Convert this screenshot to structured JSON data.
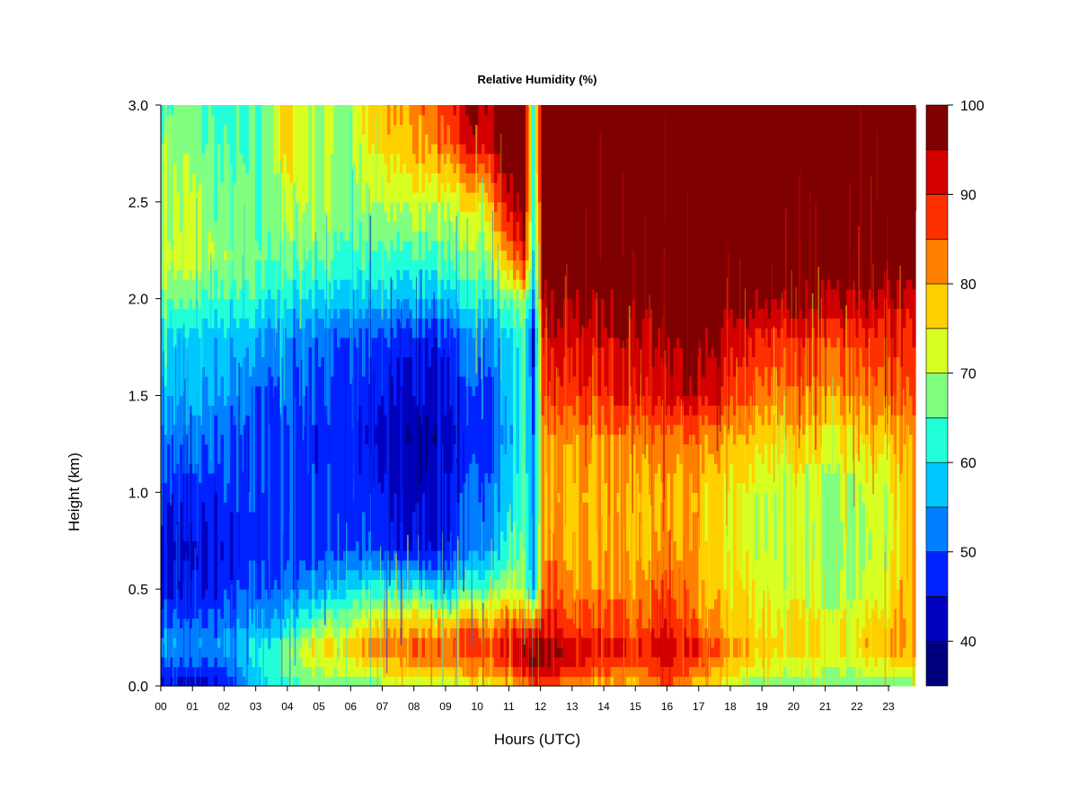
{
  "chart_data": {
    "type": "heatmap",
    "title": "Relative Humidity (%)",
    "xlabel": "Hours (UTC)",
    "ylabel": "Height (km)",
    "x_ticks": [
      "00",
      "01",
      "02",
      "03",
      "04",
      "05",
      "06",
      "07",
      "08",
      "09",
      "10",
      "11",
      "12",
      "13",
      "14",
      "15",
      "16",
      "17",
      "18",
      "19",
      "20",
      "21",
      "22",
      "23"
    ],
    "y_ticks": [
      "0.0",
      "0.5",
      "1.0",
      "1.5",
      "2.0",
      "2.5",
      "3.0"
    ],
    "xlim": [
      0,
      23.85
    ],
    "ylim": [
      0,
      3.0
    ],
    "colorbar": {
      "levels": [
        35,
        40,
        45,
        50,
        55,
        60,
        65,
        70,
        75,
        80,
        85,
        90,
        95,
        100
      ],
      "tick_labels": [
        "40",
        "50",
        "60",
        "70",
        "80",
        "90",
        "100"
      ],
      "tick_values": [
        40,
        50,
        60,
        70,
        80,
        90,
        100
      ],
      "colors": [
        "#00007f",
        "#0000bf",
        "#0022ff",
        "#0080ff",
        "#00c8ff",
        "#22ffd8",
        "#80ff80",
        "#d8ff22",
        "#ffd000",
        "#ff8000",
        "#ff3000",
        "#d40000",
        "#7f0000"
      ]
    },
    "hours": [
      0,
      1,
      2,
      3,
      4,
      5,
      6,
      7,
      8,
      9,
      10,
      11,
      11.5,
      11.8,
      12.1,
      13,
      14,
      15,
      16,
      17,
      18,
      19,
      20,
      21,
      22,
      23,
      23.85
    ],
    "heights": [
      0.0,
      0.1,
      0.2,
      0.3,
      0.5,
      0.7,
      1.0,
      1.3,
      1.5,
      1.8,
      2.0,
      2.2,
      2.5,
      2.8,
      3.0
    ],
    "rh": [
      [
        45,
        42,
        44,
        58,
        63,
        65,
        65,
        68,
        70,
        70,
        72,
        75,
        80,
        88,
        85,
        80,
        78,
        76,
        85,
        75,
        70,
        65,
        65,
        65,
        65,
        66,
        68
      ],
      [
        50,
        48,
        50,
        60,
        67,
        72,
        73,
        77,
        80,
        80,
        83,
        86,
        93,
        96,
        95,
        90,
        87,
        85,
        90,
        85,
        78,
        74,
        72,
        72,
        72,
        74,
        76
      ],
      [
        55,
        54,
        55,
        60,
        68,
        76,
        78,
        82,
        85,
        85,
        88,
        91,
        96,
        98,
        98,
        93,
        91,
        88,
        93,
        89,
        82,
        78,
        77,
        77,
        77,
        80,
        82
      ],
      [
        52,
        50,
        52,
        55,
        60,
        68,
        72,
        77,
        80,
        80,
        83,
        86,
        88,
        88,
        90,
        88,
        86,
        84,
        90,
        83,
        78,
        76,
        75,
        75,
        75,
        78,
        82
      ],
      [
        45,
        45,
        47,
        50,
        52,
        56,
        60,
        63,
        62,
        58,
        64,
        70,
        70,
        55,
        85,
        83,
        82,
        81,
        86,
        80,
        76,
        73,
        72,
        70,
        70,
        74,
        82
      ],
      [
        43,
        43,
        45,
        47,
        48,
        48,
        50,
        48,
        45,
        47,
        53,
        62,
        68,
        52,
        82,
        80,
        79,
        78,
        82,
        78,
        75,
        72,
        70,
        68,
        69,
        72,
        80
      ],
      [
        47,
        47,
        48,
        48,
        48,
        48,
        48,
        45,
        42,
        45,
        50,
        58,
        66,
        55,
        80,
        79,
        78,
        77,
        79,
        77,
        75,
        72,
        70,
        70,
        70,
        72,
        80
      ],
      [
        52,
        52,
        50,
        48,
        48,
        47,
        47,
        43,
        40,
        43,
        47,
        55,
        63,
        52,
        82,
        82,
        82,
        82,
        84,
        83,
        80,
        78,
        77,
        76,
        76,
        78,
        82
      ],
      [
        57,
        56,
        54,
        50,
        50,
        50,
        48,
        45,
        43,
        45,
        48,
        56,
        63,
        52,
        88,
        88,
        88,
        90,
        92,
        93,
        88,
        84,
        82,
        82,
        82,
        83,
        88
      ],
      [
        60,
        58,
        57,
        55,
        53,
        52,
        50,
        48,
        47,
        48,
        52,
        58,
        65,
        42,
        92,
        93,
        93,
        93,
        96,
        98,
        93,
        90,
        88,
        88,
        88,
        88,
        90
      ],
      [
        67,
        65,
        63,
        62,
        60,
        60,
        58,
        57,
        57,
        58,
        60,
        66,
        72,
        55,
        96,
        97,
        97,
        97,
        98,
        100,
        98,
        97,
        96,
        96,
        96,
        93,
        93
      ],
      [
        72,
        72,
        68,
        66,
        66,
        66,
        64,
        63,
        63,
        65,
        66,
        80,
        90,
        60,
        100,
        100,
        100,
        100,
        100,
        100,
        100,
        100,
        100,
        100,
        100,
        100,
        100
      ],
      [
        70,
        70,
        66,
        65,
        72,
        70,
        68,
        70,
        72,
        72,
        75,
        93,
        98,
        62,
        100,
        100,
        100,
        100,
        100,
        100,
        100,
        100,
        100,
        100,
        100,
        100,
        100
      ],
      [
        68,
        68,
        63,
        64,
        76,
        70,
        70,
        76,
        80,
        84,
        92,
        100,
        100,
        65,
        100,
        100,
        100,
        100,
        100,
        100,
        100,
        100,
        100,
        100,
        100,
        100,
        100
      ],
      [
        66,
        66,
        62,
        64,
        76,
        70,
        70,
        78,
        82,
        88,
        96,
        100,
        100,
        65,
        100,
        100,
        100,
        100,
        100,
        100,
        100,
        100,
        100,
        100,
        100,
        100,
        100
      ]
    ]
  }
}
